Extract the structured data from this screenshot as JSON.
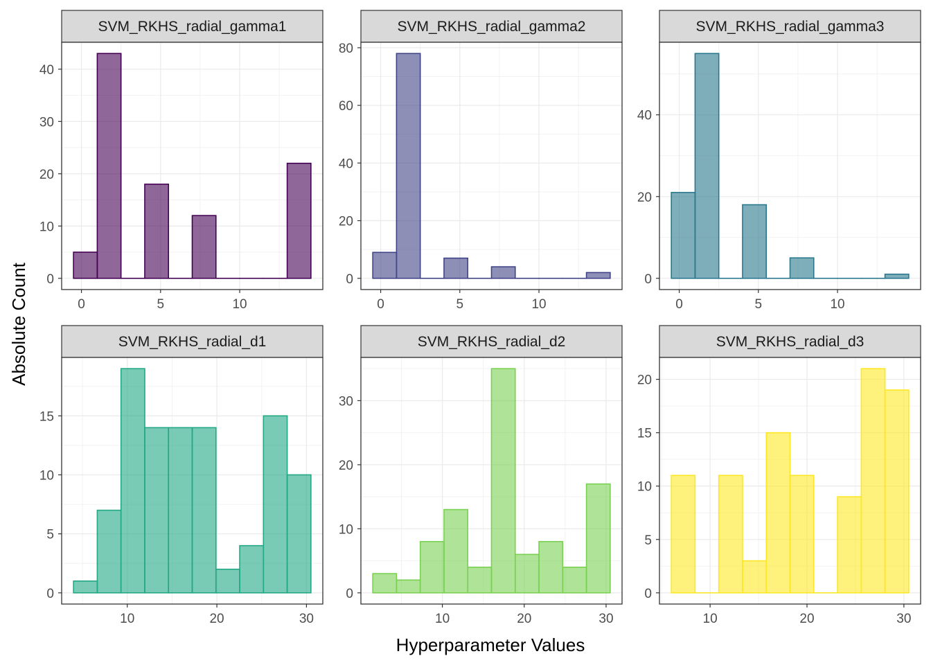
{
  "axes": {
    "xlabel": "Hyperparameter Values",
    "ylabel": "Absolute Count"
  },
  "chart_data": [
    {
      "type": "bar",
      "title": "SVM_RKHS_radial_gamma1",
      "color": "#440154",
      "bin_edges": [
        -0.5,
        1.0,
        2.5,
        4.0,
        5.5,
        7.0,
        8.5,
        10.0,
        11.5,
        13.0,
        14.5
      ],
      "values": [
        5,
        43,
        0,
        18,
        0,
        12,
        0,
        0,
        0,
        22
      ],
      "xlim": [
        -1.25,
        15.25
      ],
      "ylim": [
        -2.15,
        45.15
      ],
      "xticks": [
        0,
        5,
        10
      ],
      "yticks": [
        0,
        10,
        20,
        30,
        40
      ]
    },
    {
      "type": "bar",
      "title": "SVM_RKHS_radial_gamma2",
      "color": "#414487",
      "bin_edges": [
        -0.5,
        1.0,
        2.5,
        4.0,
        5.5,
        7.0,
        8.5,
        10.0,
        11.5,
        13.0,
        14.5
      ],
      "values": [
        9,
        78,
        0,
        7,
        0,
        4,
        0,
        0,
        0,
        2
      ],
      "xlim": [
        -1.25,
        15.25
      ],
      "ylim": [
        -3.9,
        81.9
      ],
      "xticks": [
        0,
        5,
        10
      ],
      "yticks": [
        0,
        20,
        40,
        60,
        80
      ]
    },
    {
      "type": "bar",
      "title": "SVM_RKHS_radial_gamma3",
      "color": "#2A788E",
      "bin_edges": [
        -0.5,
        1.0,
        2.5,
        4.0,
        5.5,
        7.0,
        8.5,
        10.0,
        11.5,
        13.0,
        14.5
      ],
      "values": [
        21,
        55,
        0,
        18,
        0,
        5,
        0,
        0,
        0,
        1
      ],
      "xlim": [
        -1.25,
        15.25
      ],
      "ylim": [
        -2.75,
        57.75
      ],
      "xticks": [
        0,
        5,
        10
      ],
      "yticks": [
        0,
        20,
        40
      ]
    },
    {
      "type": "bar",
      "title": "SVM_RKHS_radial_d1",
      "color": "#22A884",
      "bin_edges": [
        4.0,
        6.65,
        9.3,
        11.95,
        14.6,
        17.25,
        19.9,
        22.55,
        25.2,
        27.85,
        30.5
      ],
      "values": [
        1,
        7,
        19,
        14,
        14,
        14,
        2,
        4,
        15,
        10
      ],
      "xlim": [
        2.675,
        31.825
      ],
      "ylim": [
        -0.95,
        19.95
      ],
      "xticks": [
        10,
        20,
        30
      ],
      "yticks": [
        0,
        5,
        10,
        15
      ]
    },
    {
      "type": "bar",
      "title": "SVM_RKHS_radial_d2",
      "color": "#7AD151",
      "bin_edges": [
        1.5,
        4.4,
        7.3,
        10.2,
        13.1,
        16.0,
        18.9,
        21.8,
        24.7,
        27.6,
        30.5
      ],
      "values": [
        3,
        2,
        8,
        13,
        4,
        35,
        6,
        8,
        4,
        17
      ],
      "xlim": [
        0.05,
        31.95
      ],
      "ylim": [
        -1.75,
        36.75
      ],
      "xticks": [
        10,
        20,
        30
      ],
      "yticks": [
        0,
        10,
        20,
        30
      ]
    },
    {
      "type": "bar",
      "title": "SVM_RKHS_radial_d3",
      "color": "#FDE725",
      "bin_edges": [
        6.0,
        8.45,
        10.9,
        13.35,
        15.8,
        18.25,
        20.7,
        23.15,
        25.6,
        28.05,
        30.5
      ],
      "values": [
        11,
        0,
        11,
        3,
        15,
        11,
        0,
        9,
        21,
        19
      ],
      "xlim": [
        4.775,
        31.725
      ],
      "ylim": [
        -1.05,
        22.05
      ],
      "xticks": [
        10,
        20,
        30
      ],
      "yticks": [
        0,
        5,
        10,
        15,
        20
      ]
    }
  ]
}
